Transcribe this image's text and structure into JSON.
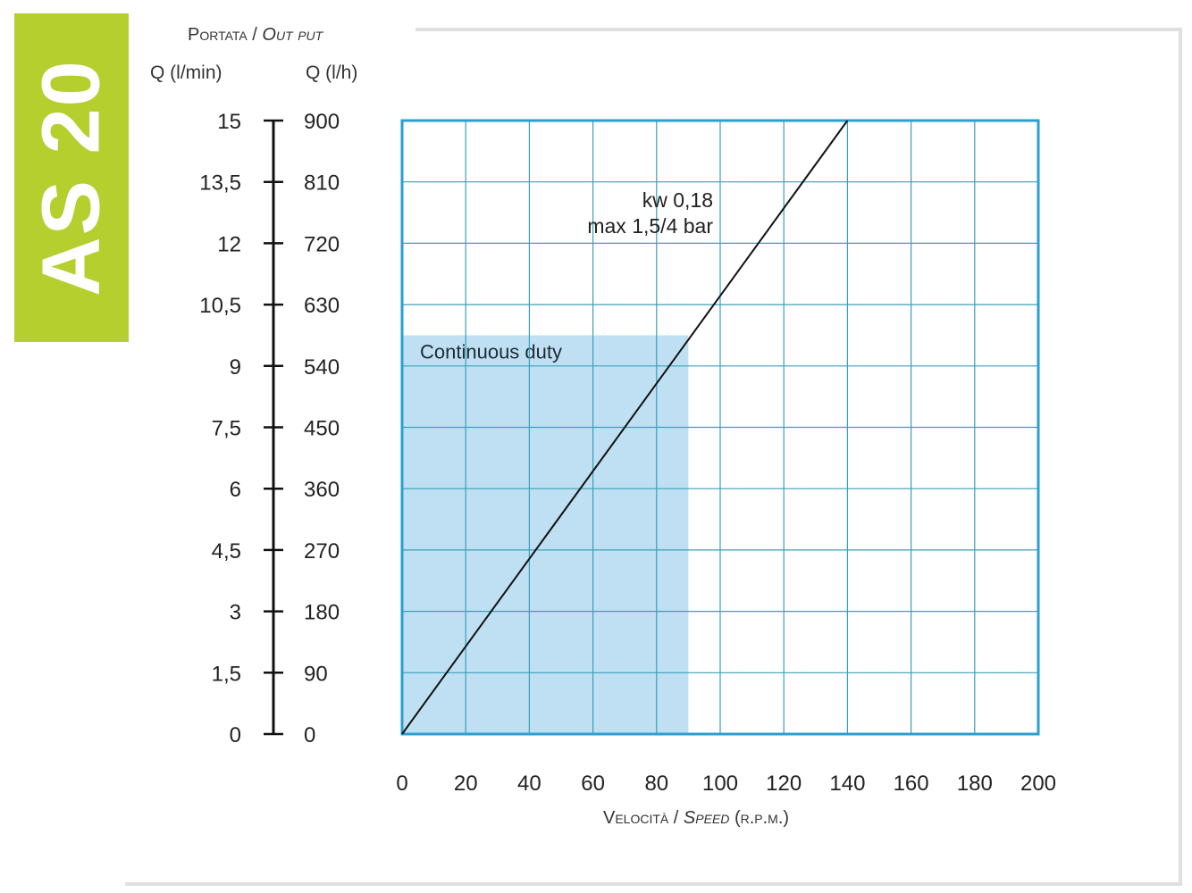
{
  "badge": {
    "label": "AS 20",
    "color": "#b5cf2e"
  },
  "chart_data": {
    "type": "line",
    "title": "",
    "ylabel": {
      "main": "Portata",
      "secondary": "Out put"
    },
    "ylabel_left_unit": "Q (l/min)",
    "ylabel_right_unit": "Q (l/h)",
    "xlabel": {
      "main": "Velocità",
      "secondary": "Speed",
      "unit": "(r.p.m.)"
    },
    "xlim": [
      0,
      200
    ],
    "ylim": [
      0,
      15
    ],
    "x_ticks": [
      "0",
      "20",
      "40",
      "60",
      "80",
      "100",
      "120",
      "140",
      "160",
      "180",
      "200"
    ],
    "y_ticks_lmin": [
      "0",
      "1,5",
      "3",
      "4,5",
      "6",
      "7,5",
      "9",
      "10,5",
      "12",
      "13,5",
      "15"
    ],
    "y_ticks_lh": [
      "0",
      "90",
      "180",
      "270",
      "360",
      "450",
      "540",
      "630",
      "720",
      "810",
      "900"
    ],
    "grid": true,
    "series": [
      {
        "name": "kw 0,18",
        "label_line2": "max 1,5/4 bar",
        "x": [
          0,
          140
        ],
        "y": [
          0,
          15
        ],
        "color": "#111111"
      }
    ],
    "regions": [
      {
        "label": "Continuous duty",
        "x": [
          0,
          90
        ],
        "y": [
          0,
          9.75
        ],
        "color": "#bfe0f3"
      }
    ],
    "colors": {
      "grid": "#3a9fba",
      "border": "#2a9fd0"
    }
  }
}
